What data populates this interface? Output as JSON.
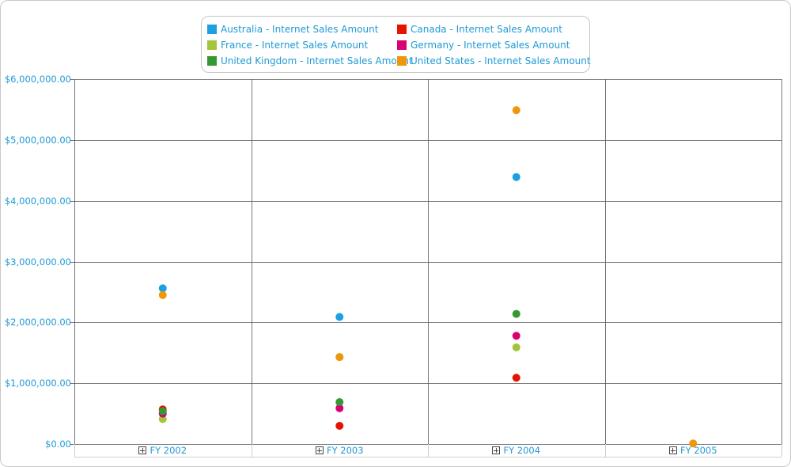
{
  "chart_data": {
    "type": "scatter",
    "title": "",
    "xlabel": "",
    "ylabel": "",
    "categories": [
      "FY 2002",
      "FY 2003",
      "FY 2004",
      "FY 2005"
    ],
    "ylim": [
      0,
      6000000
    ],
    "yticks": [
      0,
      1000000,
      2000000,
      3000000,
      4000000,
      5000000,
      6000000
    ],
    "ytick_labels": [
      "$0.00",
      "$1,000,000.00",
      "$2,000,000.00",
      "$3,000,000.00",
      "$4,000,000.00",
      "$5,000,000.00",
      "$6,000,000.00"
    ],
    "grid": true,
    "legend_position": "top-center",
    "series": [
      {
        "name": "Australia - Internet Sales Amount",
        "color": "#1ba1e2",
        "values": [
          2560000,
          2090000,
          4390000,
          null
        ]
      },
      {
        "name": "Canada - Internet Sales Amount",
        "color": "#e51400",
        "values": [
          570000,
          300000,
          1090000,
          null
        ]
      },
      {
        "name": "France - Internet Sales Amount",
        "color": "#a4c43c",
        "values": [
          410000,
          1430000,
          1590000,
          null
        ]
      },
      {
        "name": "Germany - Internet Sales Amount",
        "color": "#d80073",
        "values": [
          500000,
          590000,
          1780000,
          null
        ]
      },
      {
        "name": "United Kingdom - Internet Sales Amount",
        "color": "#339933",
        "values": [
          540000,
          690000,
          2140000,
          null
        ]
      },
      {
        "name": "United States - Internet Sales Amount",
        "color": "#f09609",
        "values": [
          2450000,
          1430000,
          5490000,
          10000
        ]
      }
    ]
  }
}
